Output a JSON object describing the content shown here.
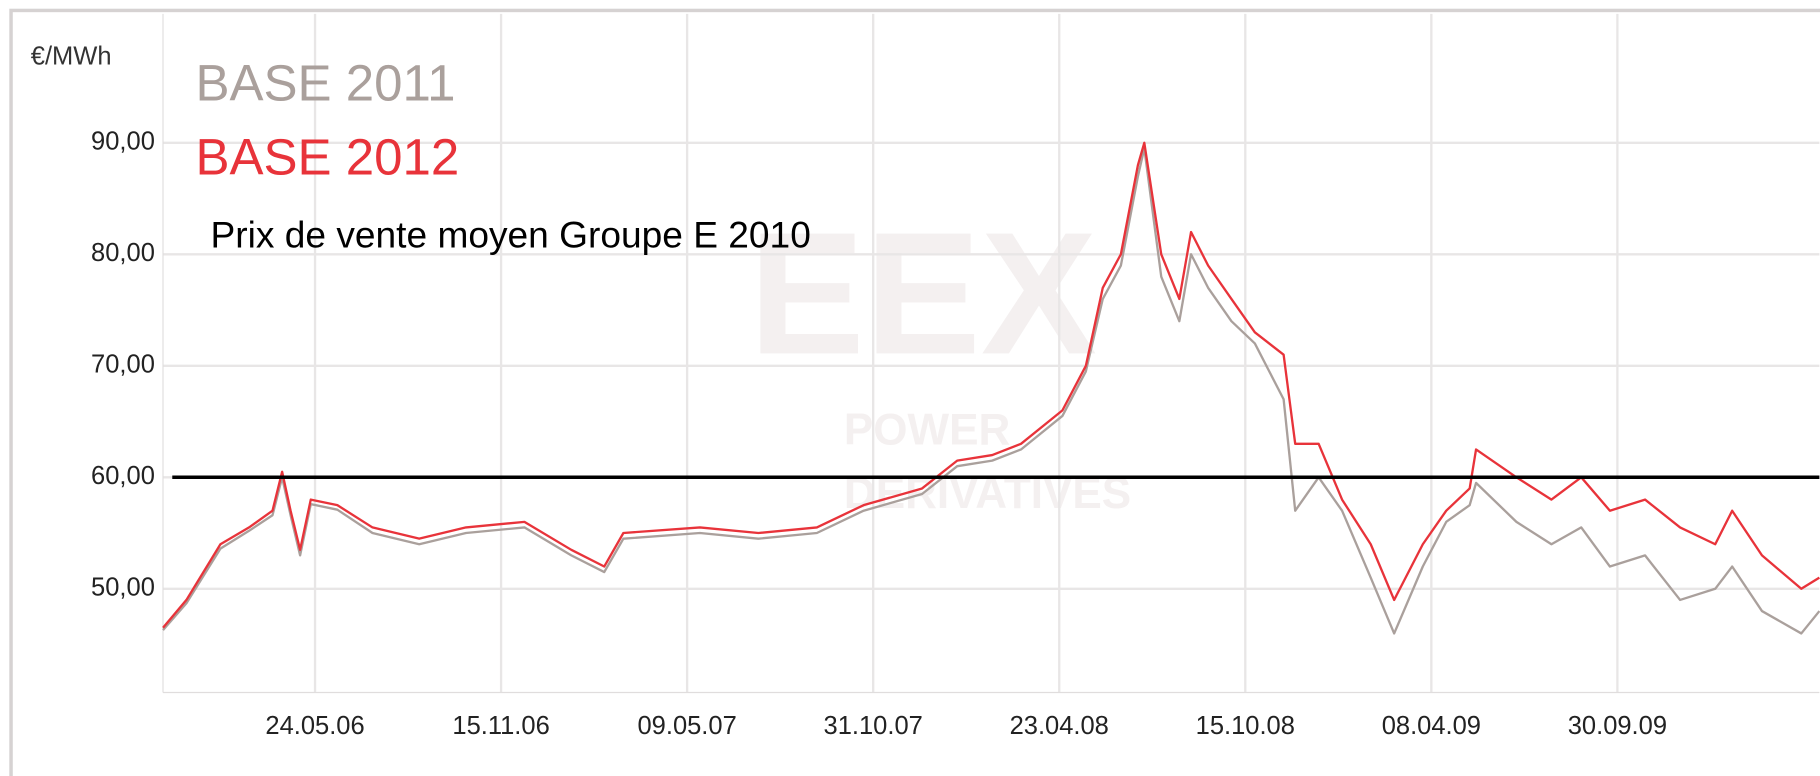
{
  "chart_data": {
    "type": "line",
    "y_label": "€/MWh",
    "watermark": [
      "EEX",
      "POWER",
      "DERIVATIVES"
    ],
    "x": [
      "2006-01-01",
      "2006-01-23",
      "2006-02-24",
      "2006-03-23",
      "2006-04-14",
      "2006-04-23",
      "2006-05-01",
      "2006-05-10",
      "2006-05-20",
      "2006-06-14",
      "2006-07-17",
      "2006-08-30",
      "2006-10-13",
      "2006-12-07",
      "2007-01-20",
      "2007-02-20",
      "2007-03-10",
      "2007-05-21",
      "2007-07-15",
      "2007-09-08",
      "2007-10-22",
      "2007-12-16",
      "2008-01-18",
      "2008-02-20",
      "2008-03-18",
      "2008-04-26",
      "2008-05-18",
      "2008-06-03",
      "2008-06-20",
      "2008-07-06",
      "2008-07-12",
      "2008-07-28",
      "2008-08-14",
      "2008-08-25",
      "2008-09-10",
      "2008-10-02",
      "2008-10-24",
      "2008-11-20",
      "2008-12-01",
      "2008-12-23",
      "2009-01-14",
      "2009-02-10",
      "2009-03-04",
      "2009-03-31",
      "2009-04-22",
      "2009-05-14",
      "2009-05-20",
      "2009-06-27",
      "2009-07-30",
      "2009-08-27",
      "2009-09-23",
      "2009-10-26",
      "2009-11-28",
      "2009-12-31",
      "2010-01-16",
      "2010-02-13",
      "2010-03-22",
      "2010-04-08"
    ],
    "series": [
      {
        "name": "BASE 2011",
        "color": "#aaa09c",
        "values": [
          46.3,
          48.7,
          53.6,
          55.2,
          56.6,
          60,
          56.6,
          53,
          57.6,
          57.1,
          55,
          54,
          55,
          55.5,
          53,
          51.5,
          54.5,
          55,
          54.5,
          55,
          57,
          58.5,
          61,
          61.5,
          62.5,
          65.5,
          69.5,
          76,
          79,
          87,
          89.5,
          78,
          74,
          80,
          77,
          74,
          72,
          67,
          57,
          60,
          57,
          51,
          46,
          52,
          56,
          57.5,
          59.5,
          56,
          54,
          55.5,
          52,
          53,
          49,
          50,
          52,
          48,
          46,
          48
        ]
      },
      {
        "name": "BASE 2012",
        "color": "#e8333a",
        "values": [
          46.5,
          49,
          54,
          55.5,
          57,
          60.5,
          57,
          53.5,
          58,
          57.5,
          55.5,
          54.5,
          55.5,
          56,
          53.5,
          52,
          55,
          55.5,
          55,
          55.5,
          57.5,
          59,
          61.5,
          62,
          63,
          66,
          70,
          77,
          80,
          88,
          90,
          80,
          76,
          82,
          79,
          76,
          73,
          71,
          63,
          63,
          58,
          54,
          49,
          54,
          57,
          59,
          62.5,
          60,
          58,
          60,
          57,
          58,
          55.5,
          54,
          57,
          53,
          50,
          51
        ]
      }
    ],
    "reference_line": {
      "value": 60,
      "label": "Prix de vente moyen Groupe E 2010",
      "color": "#000000"
    },
    "xlim": [
      "2006-01-01",
      "2010-04-08"
    ],
    "xticks": [
      {
        "value": "2006-05-24",
        "label": "24.05.06"
      },
      {
        "value": "2006-11-15",
        "label": "15.11.06"
      },
      {
        "value": "2007-05-09",
        "label": "09.05.07"
      },
      {
        "value": "2007-10-31",
        "label": "31.10.07"
      },
      {
        "value": "2008-04-23",
        "label": "23.04.08"
      },
      {
        "value": "2008-10-15",
        "label": "15.10.08"
      },
      {
        "value": "2009-04-08",
        "label": "08.04.09"
      },
      {
        "value": "2009-09-30",
        "label": "30.09.09"
      }
    ],
    "ylim": [
      40.7,
      100
    ],
    "yticks": [
      {
        "value": 50,
        "label": "50,00"
      },
      {
        "value": 60,
        "label": "60,00"
      },
      {
        "value": 70,
        "label": "70,00"
      },
      {
        "value": 80,
        "label": "80,00"
      },
      {
        "value": 90,
        "label": "90,00"
      }
    ],
    "grid": true
  }
}
